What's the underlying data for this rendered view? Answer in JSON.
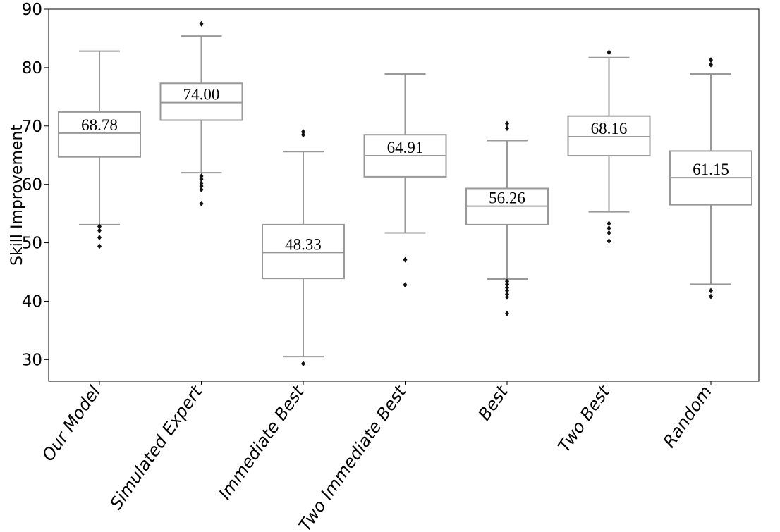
{
  "chart_data": {
    "type": "box",
    "title": "",
    "xlabel": "",
    "ylabel": "Skill Improvement",
    "ylim": [
      26.3,
      90
    ],
    "yticks": [
      30,
      40,
      50,
      60,
      70,
      80,
      90
    ],
    "grid": false,
    "box_color": "#999999",
    "outlier_color": "#111111",
    "categories": [
      "Our Model",
      "Simulated Expert",
      "Immediate Best",
      "Two Immediate Best",
      "Best",
      "Two Best",
      "Random"
    ],
    "boxes": [
      {
        "category": "Our Model",
        "whisker_low": 53.1,
        "q1": 64.7,
        "median": 68.78,
        "q3": 72.4,
        "whisker_high": 82.8,
        "median_label": "68.78",
        "outliers": [
          52.8,
          52.1,
          50.9,
          49.4
        ]
      },
      {
        "category": "Simulated Expert",
        "whisker_low": 62.0,
        "q1": 71.0,
        "median": 74.0,
        "q3": 77.3,
        "whisker_high": 85.4,
        "median_label": "74.00",
        "outliers": [
          87.5,
          61.4,
          60.9,
          60.2,
          59.7,
          59.1,
          56.7
        ]
      },
      {
        "category": "Immediate Best",
        "whisker_low": 30.5,
        "q1": 43.9,
        "median": 48.33,
        "q3": 53.1,
        "whisker_high": 65.6,
        "median_label": "48.33",
        "outliers": [
          69.0,
          68.5,
          29.3
        ]
      },
      {
        "category": "Two Immediate Best",
        "whisker_low": 51.7,
        "q1": 61.3,
        "median": 64.91,
        "q3": 68.5,
        "whisker_high": 78.9,
        "median_label": "64.91",
        "outliers": [
          47.1,
          42.8
        ]
      },
      {
        "category": "Best",
        "whisker_low": 43.8,
        "q1": 53.1,
        "median": 56.26,
        "q3": 59.3,
        "whisker_high": 67.5,
        "median_label": "56.26",
        "outliers": [
          70.4,
          69.6,
          43.4,
          42.9,
          42.3,
          41.8,
          41.2,
          40.7,
          37.9
        ]
      },
      {
        "category": "Two Best",
        "whisker_low": 55.3,
        "q1": 64.9,
        "median": 68.16,
        "q3": 71.7,
        "whisker_high": 81.7,
        "median_label": "68.16",
        "outliers": [
          82.6,
          53.3,
          52.5,
          51.7,
          50.3
        ]
      },
      {
        "category": "Random",
        "whisker_low": 42.9,
        "q1": 56.5,
        "median": 61.15,
        "q3": 65.7,
        "whisker_high": 78.9,
        "median_label": "61.15",
        "outliers": [
          81.3,
          80.5,
          41.8,
          40.8
        ]
      }
    ]
  }
}
